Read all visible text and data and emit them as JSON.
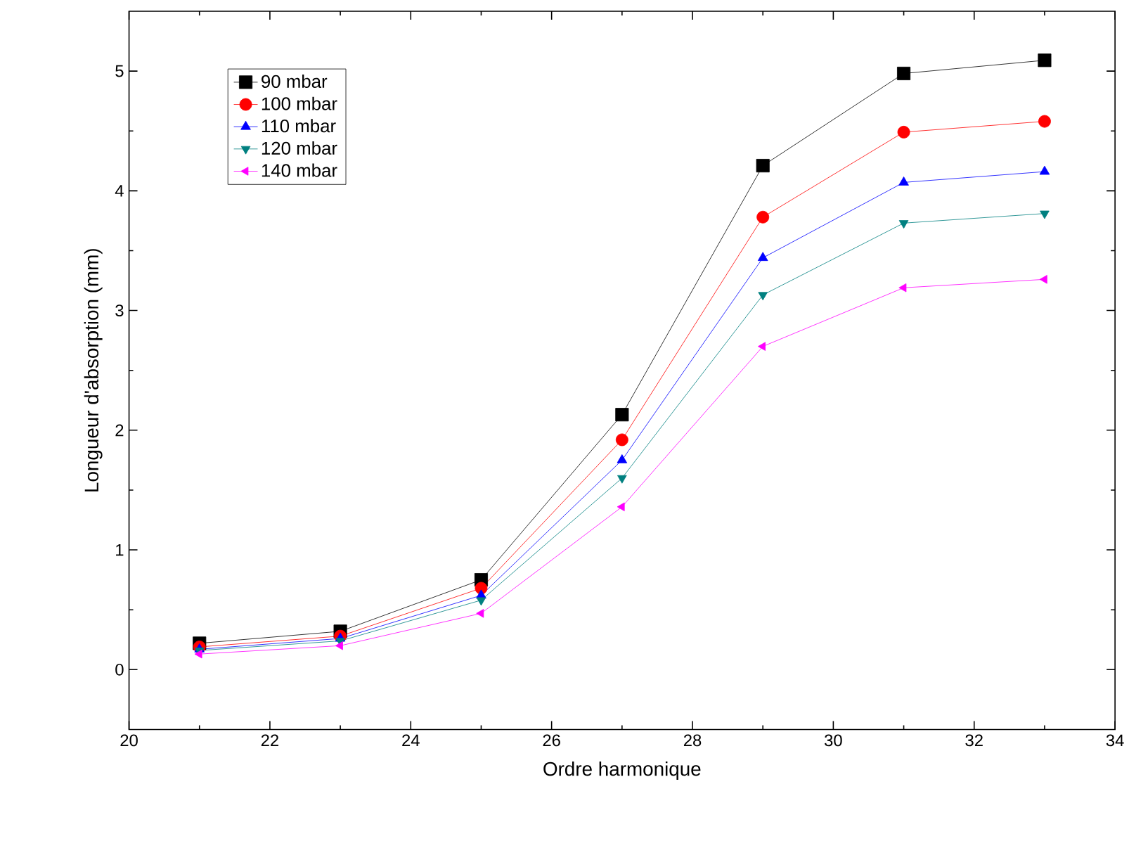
{
  "chart_data": {
    "type": "line",
    "xlabel": "Ordre harmonique",
    "ylabel": "Longueur d'absorption (mm)",
    "x": [
      21,
      23,
      25,
      27,
      29,
      31,
      33
    ],
    "series": [
      {
        "name": "90 mbar",
        "color": "#000000",
        "marker": "square",
        "values": [
          0.22,
          0.32,
          0.75,
          2.13,
          4.21,
          4.98,
          5.09
        ]
      },
      {
        "name": "100 mbar",
        "color": "#ff0000",
        "marker": "circle",
        "values": [
          0.19,
          0.28,
          0.68,
          1.92,
          3.78,
          4.49,
          4.58
        ]
      },
      {
        "name": "110 mbar",
        "color": "#0000ff",
        "marker": "triangle",
        "values": [
          0.17,
          0.26,
          0.62,
          1.75,
          3.44,
          4.07,
          4.16
        ]
      },
      {
        "name": "120 mbar",
        "color": "#008080",
        "marker": "triangle-down",
        "values": [
          0.16,
          0.24,
          0.58,
          1.6,
          3.13,
          3.73,
          3.81
        ]
      },
      {
        "name": "140 mbar",
        "color": "#ff00ff",
        "marker": "triangle-left",
        "values": [
          0.13,
          0.2,
          0.47,
          1.36,
          2.7,
          3.19,
          3.26
        ]
      }
    ],
    "xlim": [
      20,
      34
    ],
    "xticks": [
      20,
      22,
      24,
      26,
      28,
      30,
      32,
      34
    ],
    "ylim": [
      -0.5,
      5.5
    ],
    "yticks": [
      0,
      1,
      2,
      3,
      4,
      5
    ],
    "grid": false,
    "legend": "top left",
    "line_style": "solid"
  }
}
